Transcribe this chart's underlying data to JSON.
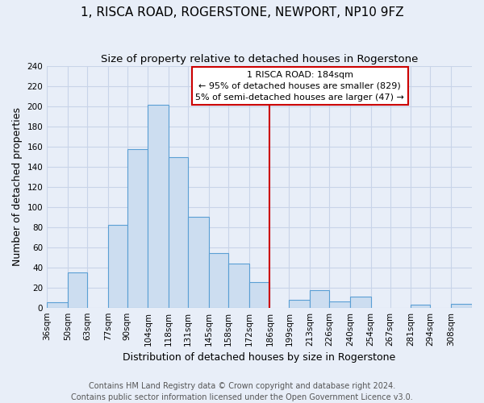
{
  "title": "1, RISCA ROAD, ROGERSTONE, NEWPORT, NP10 9FZ",
  "subtitle": "Size of property relative to detached houses in Rogerstone",
  "xlabel": "Distribution of detached houses by size in Rogerstone",
  "ylabel": "Number of detached properties",
  "bin_labels": [
    "36sqm",
    "50sqm",
    "63sqm",
    "77sqm",
    "90sqm",
    "104sqm",
    "118sqm",
    "131sqm",
    "145sqm",
    "158sqm",
    "172sqm",
    "186sqm",
    "199sqm",
    "213sqm",
    "226sqm",
    "240sqm",
    "254sqm",
    "267sqm",
    "281sqm",
    "294sqm",
    "308sqm"
  ],
  "bin_edges": [
    36,
    50,
    63,
    77,
    90,
    104,
    118,
    131,
    145,
    158,
    172,
    186,
    199,
    213,
    226,
    240,
    254,
    267,
    281,
    294,
    308
  ],
  "bar_heights": [
    5,
    35,
    0,
    82,
    157,
    201,
    149,
    90,
    54,
    44,
    25,
    0,
    8,
    17,
    6,
    11,
    0,
    0,
    3,
    0,
    4
  ],
  "bar_color": "#ccddf0",
  "bar_edge_color": "#5a9fd4",
  "vline_x": 186,
  "vline_color": "#cc0000",
  "annotation_title": "1 RISCA ROAD: 184sqm",
  "annotation_line1": "← 95% of detached houses are smaller (829)",
  "annotation_line2": "5% of semi-detached houses are larger (47) →",
  "annotation_box_color": "#ffffff",
  "annotation_box_edge": "#cc0000",
  "ylim": [
    0,
    240
  ],
  "yticks": [
    0,
    20,
    40,
    60,
    80,
    100,
    120,
    140,
    160,
    180,
    200,
    220,
    240
  ],
  "footer_line1": "Contains HM Land Registry data © Crown copyright and database right 2024.",
  "footer_line2": "Contains public sector information licensed under the Open Government Licence v3.0.",
  "bg_color": "#e8eef8",
  "grid_color": "#c8d4e8",
  "title_fontsize": 11,
  "subtitle_fontsize": 9.5,
  "axis_label_fontsize": 9,
  "tick_fontsize": 7.5,
  "footer_fontsize": 7
}
